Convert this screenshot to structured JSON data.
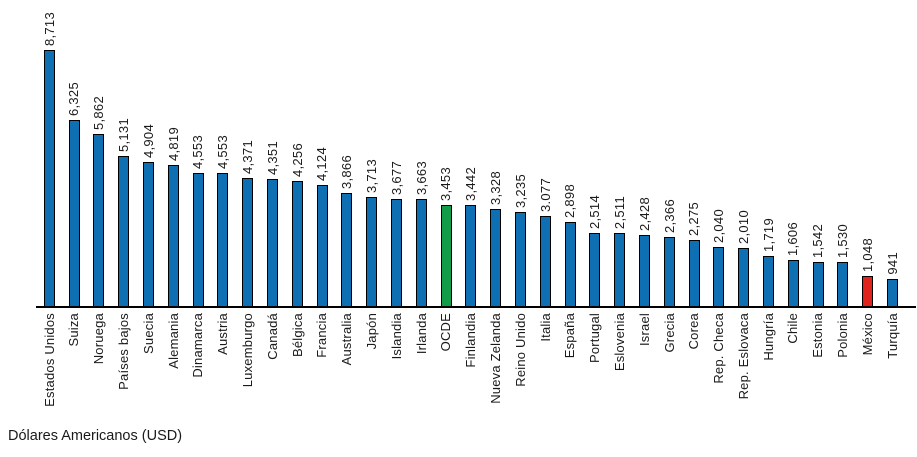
{
  "chart_data": {
    "type": "bar",
    "title": "",
    "xlabel": "",
    "ylabel": "",
    "unit_caption": "Dólares Americanos (USD)",
    "categories": [
      "Estados Unidos",
      "Suiza",
      "Noruega",
      "Países bajos",
      "Suecia",
      "Alemania",
      "Dinamarca",
      "Austria",
      "Luxemburgo",
      "Canadá",
      "Bélgica",
      "Francia",
      "Australia",
      "Japón",
      "Islandia",
      "Irlanda",
      "OCDE",
      "Finlandia",
      "Nueva Zelanda",
      "Reino Unido",
      "Italia",
      "España",
      "Portugal",
      "Eslovenia",
      "Israel",
      "Grecia",
      "Corea",
      "Rep. Checa",
      "Rep. Eslovaca",
      "Hungría",
      "Chile",
      "Estonia",
      "Polonia",
      "México",
      "Turquía"
    ],
    "values": [
      8713,
      6325,
      5862,
      5131,
      4904,
      4819,
      4553,
      4553,
      4371,
      4351,
      4256,
      4124,
      3866,
      3713,
      3677,
      3663,
      3453,
      3442,
      3328,
      3235,
      3077,
      2898,
      2514,
      2511,
      2428,
      2366,
      2275,
      2040,
      2010,
      1719,
      1606,
      1542,
      1530,
      1048,
      941
    ],
    "display_values": [
      "8,713",
      "6,325",
      "5,862",
      "5,131",
      "4,904",
      "4,819",
      "4,553",
      "4,553",
      "4,371",
      "4,351",
      "4,256",
      "4,124",
      "3,866",
      "3,713",
      "3,677",
      "3,663",
      "3,453",
      "3,442",
      "3,328",
      "3,235",
      "3.077",
      "2,898",
      "2,514",
      "2,511",
      "2,428",
      "2,366",
      "2,275",
      "2,040",
      "2,010",
      "1,719",
      "1,606",
      "1,542",
      "1,530",
      "1,048",
      "941"
    ],
    "highlights": {
      "OCDE": "bar_ocde",
      "México": "bar_mexico"
    },
    "colors": {
      "bar_default": "#0F6FB3",
      "bar_ocde": "#109C49",
      "bar_mexico": "#E1231E",
      "axis": "#000000",
      "text": "#1A1A1A"
    },
    "ylim": [
      0,
      9000
    ],
    "grid": false,
    "legend": false,
    "y_axis_visible": false,
    "value_label_rotation": "90deg counter-clockwise above bar",
    "category_label_rotation": "90deg counter-clockwise below axis"
  },
  "footer": {
    "caption": "Dólares Americanos (USD)"
  }
}
